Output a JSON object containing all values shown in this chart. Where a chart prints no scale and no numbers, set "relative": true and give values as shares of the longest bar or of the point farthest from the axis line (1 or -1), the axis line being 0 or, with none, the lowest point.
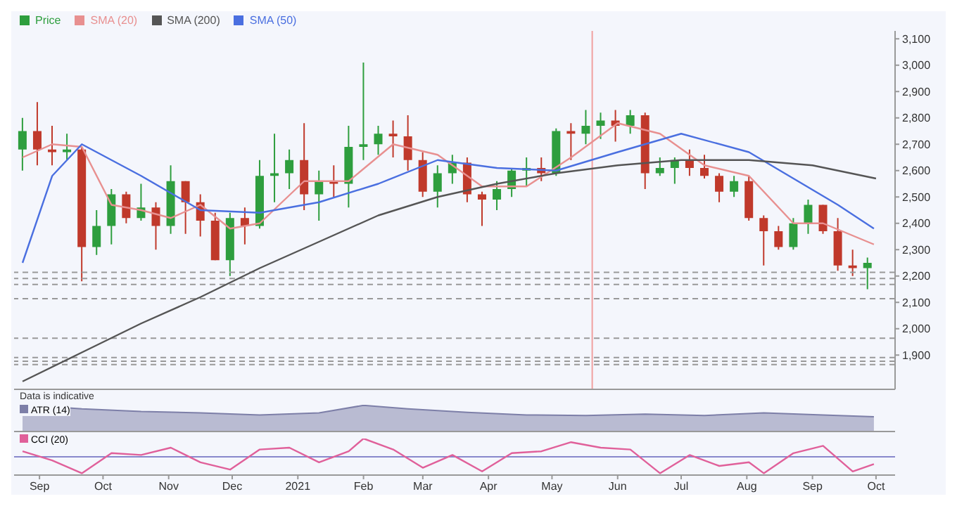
{
  "chart_data": [
    {
      "type": "candlestick",
      "legend": "top left",
      "tick_labels": "y",
      "xlim": [
        "2020-08-20",
        "2021-10-10"
      ],
      "ylim": [
        1770,
        3130
      ],
      "yticks": [
        {
          "value": 1900,
          "label": "1,900"
        },
        {
          "value": 2000,
          "label": "2,000"
        },
        {
          "value": 2100,
          "label": "2,100"
        },
        {
          "value": 2200,
          "label": "2,200"
        },
        {
          "value": 2300,
          "label": "2,300"
        },
        {
          "value": 2400,
          "label": "2,400"
        },
        {
          "value": 2500,
          "label": "2,500"
        },
        {
          "value": 2600,
          "label": "2,600"
        },
        {
          "value": 2700,
          "label": "2,700"
        },
        {
          "value": 2800,
          "label": "2,800"
        },
        {
          "value": 2900,
          "label": "2,900"
        },
        {
          "value": 3000,
          "label": "3,000"
        },
        {
          "value": 3100,
          "label": "3,100"
        }
      ],
      "series": [
        {
          "name": "Price",
          "color": "#2e9e3e",
          "x": [
            "2020-08-24",
            "2020-08-31",
            "2020-09-07",
            "2020-09-14",
            "2020-09-21",
            "2020-09-28",
            "2020-10-05",
            "2020-10-12",
            "2020-10-19",
            "2020-10-26",
            "2020-11-02",
            "2020-11-09",
            "2020-11-16",
            "2020-11-23",
            "2020-11-30",
            "2020-12-07",
            "2020-12-14",
            "2020-12-21",
            "2020-12-28",
            "2021-01-04",
            "2021-01-11",
            "2021-01-18",
            "2021-01-25",
            "2021-02-01",
            "2021-02-08",
            "2021-02-15",
            "2021-02-22",
            "2021-03-01",
            "2021-03-08",
            "2021-03-15",
            "2021-03-22",
            "2021-03-29",
            "2021-04-05",
            "2021-04-12",
            "2021-04-19",
            "2021-04-26",
            "2021-05-03",
            "2021-05-10",
            "2021-05-17",
            "2021-05-24",
            "2021-05-31",
            "2021-06-07",
            "2021-06-14",
            "2021-06-21",
            "2021-06-28",
            "2021-07-05",
            "2021-07-12",
            "2021-07-19",
            "2021-07-26",
            "2021-08-02",
            "2021-08-09",
            "2021-08-16",
            "2021-08-23",
            "2021-08-30",
            "2021-09-06",
            "2021-09-13",
            "2021-09-20",
            "2021-09-27"
          ],
          "ohlc": [
            [
              2680,
              2800,
              2600,
              2750
            ],
            [
              2750,
              2860,
              2620,
              2680
            ],
            [
              2680,
              2770,
              2620,
              2670
            ],
            [
              2670,
              2740,
              2640,
              2680
            ],
            [
              2680,
              2690,
              2180,
              2310
            ],
            [
              2310,
              2450,
              2280,
              2390
            ],
            [
              2390,
              2530,
              2320,
              2510
            ],
            [
              2510,
              2520,
              2400,
              2420
            ],
            [
              2420,
              2550,
              2410,
              2460
            ],
            [
              2460,
              2480,
              2300,
              2390
            ],
            [
              2390,
              2620,
              2360,
              2560
            ],
            [
              2560,
              2560,
              2360,
              2480
            ],
            [
              2480,
              2510,
              2350,
              2410
            ],
            [
              2410,
              2440,
              2260,
              2260
            ],
            [
              2260,
              2440,
              2200,
              2420
            ],
            [
              2420,
              2460,
              2320,
              2390
            ],
            [
              2390,
              2640,
              2380,
              2580
            ],
            [
              2580,
              2740,
              2480,
              2590
            ],
            [
              2590,
              2680,
              2530,
              2640
            ],
            [
              2640,
              2780,
              2450,
              2510
            ],
            [
              2510,
              2600,
              2410,
              2560
            ],
            [
              2560,
              2620,
              2500,
              2550
            ],
            [
              2550,
              2770,
              2460,
              2690
            ],
            [
              2690,
              3010,
              2640,
              2700
            ],
            [
              2700,
              2770,
              2660,
              2740
            ],
            [
              2740,
              2790,
              2650,
              2730
            ],
            [
              2730,
              2810,
              2600,
              2640
            ],
            [
              2640,
              2670,
              2500,
              2520
            ],
            [
              2520,
              2620,
              2460,
              2590
            ],
            [
              2590,
              2660,
              2550,
              2630
            ],
            [
              2630,
              2650,
              2480,
              2510
            ],
            [
              2510,
              2520,
              2390,
              2490
            ],
            [
              2490,
              2560,
              2450,
              2530
            ],
            [
              2530,
              2610,
              2500,
              2600
            ],
            [
              2600,
              2650,
              2540,
              2610
            ],
            [
              2610,
              2650,
              2560,
              2590
            ],
            [
              2590,
              2760,
              2580,
              2750
            ],
            [
              2750,
              2780,
              2640,
              2740
            ],
            [
              2740,
              2830,
              2700,
              2770
            ],
            [
              2770,
              2820,
              2720,
              2790
            ],
            [
              2790,
              2830,
              2710,
              2770
            ],
            [
              2770,
              2830,
              2740,
              2810
            ],
            [
              2810,
              2820,
              2530,
              2590
            ],
            [
              2590,
              2650,
              2580,
              2610
            ],
            [
              2610,
              2650,
              2550,
              2640
            ],
            [
              2640,
              2680,
              2580,
              2610
            ],
            [
              2610,
              2660,
              2570,
              2580
            ],
            [
              2580,
              2590,
              2480,
              2520
            ],
            [
              2520,
              2580,
              2500,
              2560
            ],
            [
              2560,
              2580,
              2410,
              2420
            ],
            [
              2420,
              2430,
              2240,
              2370
            ],
            [
              2370,
              2390,
              2300,
              2310
            ],
            [
              2310,
              2420,
              2300,
              2400
            ],
            [
              2400,
              2490,
              2360,
              2470
            ],
            [
              2470,
              2470,
              2360,
              2370
            ],
            [
              2370,
              2420,
              2220,
              2240
            ],
            [
              2240,
              2300,
              2200,
              2230
            ],
            [
              2230,
              2270,
              2150,
              2250
            ]
          ],
          "colors": [
            "#2e9e3e",
            "#c0392b",
            "#c0392b",
            "#2e9e3e",
            "#c0392b",
            "#2e9e3e",
            "#2e9e3e",
            "#c0392b",
            "#2e9e3e",
            "#c0392b",
            "#2e9e3e",
            "#c0392b",
            "#c0392b",
            "#c0392b",
            "#2e9e3e",
            "#c0392b",
            "#2e9e3e",
            "#2e9e3e",
            "#2e9e3e",
            "#c0392b",
            "#2e9e3e",
            "#c0392b",
            "#2e9e3e",
            "#2e9e3e",
            "#2e9e3e",
            "#c0392b",
            "#c0392b",
            "#c0392b",
            "#2e9e3e",
            "#2e9e3e",
            "#c0392b",
            "#c0392b",
            "#2e9e3e",
            "#2e9e3e",
            "#2e9e3e",
            "#c0392b",
            "#2e9e3e",
            "#c0392b",
            "#2e9e3e",
            "#2e9e3e",
            "#c0392b",
            "#2e9e3e",
            "#c0392b",
            "#2e9e3e",
            "#2e9e3e",
            "#c0392b",
            "#c0392b",
            "#c0392b",
            "#2e9e3e",
            "#c0392b",
            "#c0392b",
            "#c0392b",
            "#2e9e3e",
            "#2e9e3e",
            "#c0392b",
            "#c0392b",
            "#c0392b",
            "#2e9e3e"
          ]
        },
        {
          "name": "SMA (20)",
          "type": "line",
          "color": "#e89090",
          "x": [
            "2020-08-24",
            "2020-09-07",
            "2020-09-21",
            "2020-10-05",
            "2020-10-19",
            "2020-11-02",
            "2020-11-16",
            "2020-11-30",
            "2020-12-14",
            "2021-01-04",
            "2021-01-25",
            "2021-02-15",
            "2021-03-08",
            "2021-03-29",
            "2021-04-19",
            "2021-05-10",
            "2021-06-01",
            "2021-06-21",
            "2021-07-12",
            "2021-08-02",
            "2021-08-23",
            "2021-09-06",
            "2021-09-30"
          ],
          "values": [
            2650,
            2700,
            2690,
            2470,
            2450,
            2420,
            2470,
            2380,
            2400,
            2560,
            2560,
            2700,
            2660,
            2540,
            2540,
            2650,
            2780,
            2740,
            2620,
            2580,
            2400,
            2400,
            2320
          ]
        },
        {
          "name": "SMA (50)",
          "type": "line",
          "color": "#4a6fe0",
          "x": [
            "2020-08-24",
            "2020-09-07",
            "2020-09-21",
            "2020-10-19",
            "2020-11-16",
            "2020-12-14",
            "2021-01-11",
            "2021-02-08",
            "2021-03-08",
            "2021-04-05",
            "2021-05-03",
            "2021-06-01",
            "2021-07-01",
            "2021-08-02",
            "2021-08-23",
            "2021-09-13",
            "2021-09-30"
          ],
          "values": [
            2250,
            2580,
            2700,
            2580,
            2450,
            2440,
            2480,
            2550,
            2640,
            2610,
            2600,
            2670,
            2740,
            2670,
            2570,
            2470,
            2380
          ]
        },
        {
          "name": "SMA (200)",
          "type": "line",
          "color": "#555555",
          "x": [
            "2020-08-24",
            "2020-09-21",
            "2020-10-19",
            "2020-11-16",
            "2020-12-14",
            "2021-01-11",
            "2021-02-08",
            "2021-03-08",
            "2021-04-05",
            "2021-05-03",
            "2021-06-01",
            "2021-07-01",
            "2021-08-02",
            "2021-09-01",
            "2021-10-01"
          ],
          "values": [
            1800,
            1910,
            2020,
            2120,
            2230,
            2330,
            2430,
            2500,
            2550,
            2590,
            2620,
            2640,
            2640,
            2620,
            2570
          ]
        }
      ],
      "ref_lines": [
        {
          "axis": "y",
          "value": 2214,
          "color": "#999999",
          "line_style": "dashed"
        },
        {
          "axis": "y",
          "value": 2191,
          "color": "#999999",
          "line_style": "dashed"
        },
        {
          "axis": "y",
          "value": 2168,
          "color": "#999999",
          "line_style": "dashed"
        },
        {
          "axis": "y",
          "value": 2114,
          "color": "#999999",
          "line_style": "dashed"
        },
        {
          "axis": "y",
          "value": 1964,
          "color": "#999999",
          "line_style": "dashed"
        },
        {
          "axis": "y",
          "value": 1891,
          "color": "#999999",
          "line_style": "dashed"
        },
        {
          "axis": "y",
          "value": 1877,
          "color": "#999999",
          "line_style": "dashed"
        },
        {
          "axis": "y",
          "value": 1864,
          "color": "#999999",
          "line_style": "dashed"
        },
        {
          "axis": "x",
          "value": "2021-05-20",
          "color": "#f0a0a0",
          "line_style": "solid"
        }
      ]
    },
    {
      "type": "area",
      "relative": true,
      "tick_labels": false,
      "annotations": [
        "Data is indicative"
      ],
      "xlim": [
        "2020-08-20",
        "2021-10-10"
      ],
      "series": [
        {
          "name": "ATR (14)",
          "color": "#7d7fa8",
          "x": [
            "2020-08-24",
            "2020-09-21",
            "2020-10-19",
            "2020-11-16",
            "2020-12-14",
            "2021-01-11",
            "2021-02-01",
            "2021-02-22",
            "2021-03-22",
            "2021-04-19",
            "2021-05-17",
            "2021-06-14",
            "2021-07-12",
            "2021-08-09",
            "2021-09-06",
            "2021-09-30"
          ],
          "values": [
            1,
            0.85,
            0.75,
            0.7,
            0.62,
            0.7,
            0.98,
            0.85,
            0.72,
            0.62,
            0.6,
            0.65,
            0.6,
            0.7,
            0.62,
            0.55
          ]
        }
      ]
    },
    {
      "type": "line",
      "relative": true,
      "tick_labels": "x",
      "xlim": [
        "2020-08-20",
        "2021-10-10"
      ],
      "ref_lines": [
        {
          "axis": "y",
          "value": 0,
          "color": "#8888cc"
        }
      ],
      "xticks": [
        {
          "value": "2020-09-01",
          "label": "Sep"
        },
        {
          "value": "2020-10-01",
          "label": "Oct"
        },
        {
          "value": "2020-11-01",
          "label": "Nov"
        },
        {
          "value": "2020-12-01",
          "label": "Dec"
        },
        {
          "value": "2021-01-01",
          "label": "2021"
        },
        {
          "value": "2021-02-01",
          "label": "Feb"
        },
        {
          "value": "2021-03-01",
          "label": "Mar"
        },
        {
          "value": "2021-04-01",
          "label": "Apr"
        },
        {
          "value": "2021-05-01",
          "label": "May"
        },
        {
          "value": "2021-06-01",
          "label": "Jun"
        },
        {
          "value": "2021-07-01",
          "label": "Jul"
        },
        {
          "value": "2021-08-01",
          "label": "Aug"
        },
        {
          "value": "2021-09-01",
          "label": "Sep"
        },
        {
          "value": "2021-10-01",
          "label": "Oct"
        }
      ],
      "series": [
        {
          "name": "CCI (20)",
          "color": "#e0609a",
          "x": [
            "2020-08-24",
            "2020-09-07",
            "2020-09-21",
            "2020-10-05",
            "2020-10-19",
            "2020-11-02",
            "2020-11-16",
            "2020-11-30",
            "2020-12-14",
            "2020-12-28",
            "2021-01-11",
            "2021-01-25",
            "2021-02-01",
            "2021-02-15",
            "2021-03-01",
            "2021-03-15",
            "2021-03-29",
            "2021-04-12",
            "2021-04-26",
            "2021-05-10",
            "2021-05-24",
            "2021-06-07",
            "2021-06-21",
            "2021-07-05",
            "2021-07-19",
            "2021-08-02",
            "2021-08-09",
            "2021-08-23",
            "2021-09-06",
            "2021-09-20",
            "2021-09-30"
          ],
          "values": [
            0.3,
            -0.2,
            -0.9,
            0.2,
            0.1,
            0.5,
            -0.3,
            -0.7,
            0.4,
            0.5,
            -0.3,
            0.3,
            1,
            0.4,
            -0.6,
            0.1,
            -0.8,
            0.2,
            0.3,
            0.8,
            0.5,
            0.4,
            -0.9,
            0.1,
            -0.5,
            -0.3,
            -0.9,
            0.2,
            0.6,
            -0.8,
            -0.4
          ]
        }
      ]
    }
  ]
}
